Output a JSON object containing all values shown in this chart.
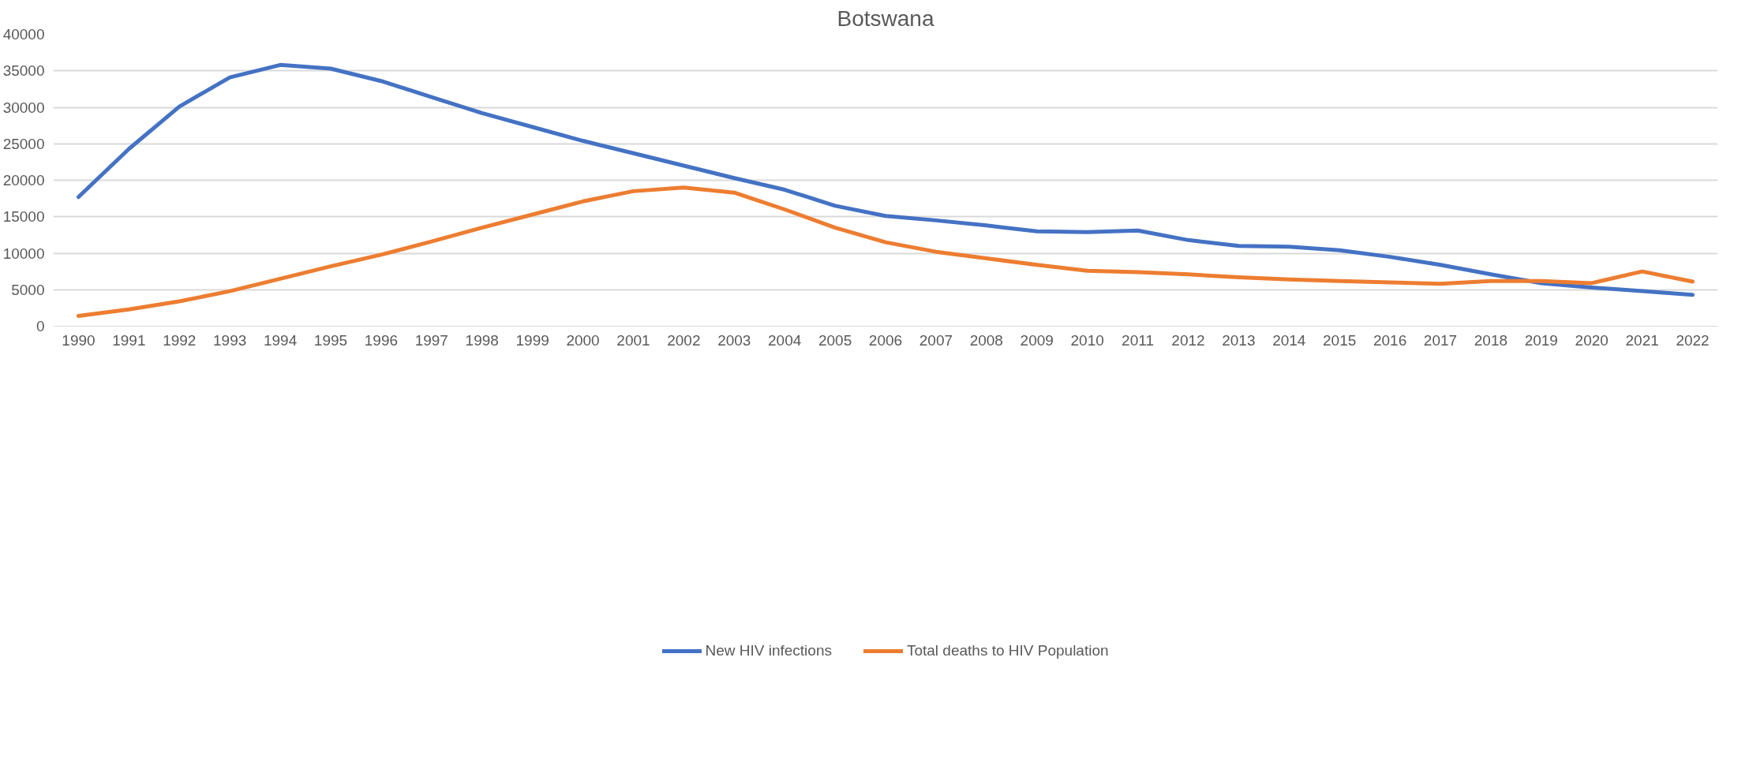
{
  "chart_data": {
    "type": "line",
    "title": "Botswana",
    "categories": [
      "1990",
      "1991",
      "1992",
      "1993",
      "1994",
      "1995",
      "1996",
      "1997",
      "1998",
      "1999",
      "2000",
      "2001",
      "2002",
      "2003",
      "2004",
      "2005",
      "2006",
      "2007",
      "2008",
      "2009",
      "2010",
      "2011",
      "2012",
      "2013",
      "2014",
      "2015",
      "2016",
      "2017",
      "2018",
      "2019",
      "2020",
      "2021",
      "2022"
    ],
    "series": [
      {
        "name": "New HIV infections",
        "color": "#4472c4",
        "values": [
          17700,
          24300,
          30100,
          34100,
          35800,
          35300,
          33600,
          31400,
          29200,
          27300,
          25400,
          23700,
          22000,
          20300,
          18700,
          16500,
          15100,
          14500,
          13800,
          13000,
          12900,
          13100,
          11800,
          11000,
          10900,
          10400,
          9500,
          8400,
          7100,
          5900,
          5300,
          4800,
          4300
        ]
      },
      {
        "name": "Total deaths to HIV Population",
        "color": "#ed7d31",
        "values": [
          1400,
          2300,
          3400,
          4800,
          6500,
          8200,
          9800,
          11600,
          13500,
          15300,
          17100,
          18500,
          19000,
          18300,
          16000,
          13500,
          11500,
          10200,
          9300,
          8400,
          7600,
          7400,
          7100,
          6700,
          6400,
          6200,
          6000,
          5800,
          6200,
          6200,
          5900,
          7500,
          6100
        ]
      }
    ],
    "ylim": [
      0,
      40000
    ],
    "yticks": [
      0,
      5000,
      10000,
      15000,
      20000,
      25000,
      30000,
      35000,
      40000
    ],
    "grid": "y",
    "legend": "bottom",
    "line_style": "solid",
    "marker": "none"
  }
}
